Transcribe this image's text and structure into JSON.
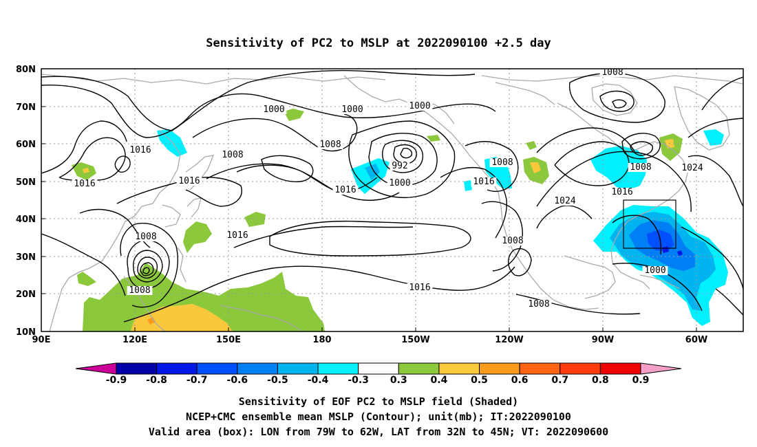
{
  "title": "Sensitivity of PC2 to MSLP at 2022090100 +2.5 day",
  "map": {
    "lat_labels": [
      "80N",
      "70N",
      "60N",
      "50N",
      "40N",
      "30N",
      "20N",
      "10N"
    ],
    "lon_labels": [
      "90E",
      "120E",
      "150E",
      "180",
      "150W",
      "120W",
      "90W",
      "60W"
    ],
    "lat_range": [
      10,
      80
    ],
    "lon_range": [
      "90E",
      "45W"
    ],
    "grid": "dotted",
    "coastline_color": "#aaaaaa",
    "contour_labels": [
      "1008",
      "1000",
      "1000",
      "1000",
      "992",
      "1008",
      "1008",
      "1016",
      "1008",
      "1008",
      "1016",
      "1016",
      "1024",
      "1008",
      "1024",
      "1016",
      "1008",
      "1016",
      "1008",
      "1000",
      "1016",
      "1008",
      "1016",
      "1000",
      "1016"
    ],
    "valid_box": {
      "lon": [
        "79W",
        "62W"
      ],
      "lat": [
        "32N",
        "45N"
      ]
    }
  },
  "colorbar": {
    "labels": [
      "-0.9",
      "-0.8",
      "-0.7",
      "-0.6",
      "-0.5",
      "-0.4",
      "-0.3",
      "0.3",
      "0.4",
      "0.5",
      "0.6",
      "0.7",
      "0.8",
      "0.9"
    ],
    "colors": [
      "#0000aa",
      "#0018e6",
      "#0050ff",
      "#007ff5",
      "#00b4f0",
      "#00f0ff",
      "#ffffff",
      "#8cc83c",
      "#fac83c",
      "#fa9b1e",
      "#ff6414",
      "#ff3c0a",
      "#f00000"
    ],
    "low_end_color": "#cc0099",
    "high_end_color": "#f5a0c8"
  },
  "captions": [
    "Sensitivity of EOF PC2 to MSLP field (Shaded)",
    "NCEP+CMC ensemble mean MSLP (Contour); unit(mb); IT:2022090100",
    "Valid area (box): LON from 79W to 62W, LAT from 32N to 45N; VT: 2022090600"
  ]
}
